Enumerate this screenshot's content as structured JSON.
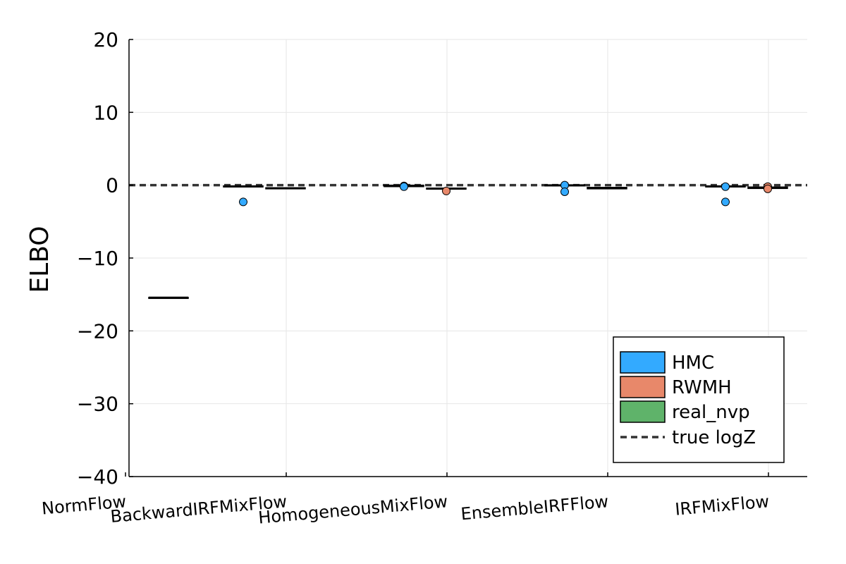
{
  "chart_data": {
    "type": "box",
    "ylabel": "ELBO",
    "xlabel": "",
    "ylim": [
      -40,
      20
    ],
    "yticks": [
      20,
      10,
      0,
      -10,
      -20,
      -30,
      -40
    ],
    "ytick_labels": [
      "20",
      "10",
      "0",
      "−10",
      "−20",
      "−30",
      "−40"
    ],
    "categories": [
      "NormFlow",
      "BackwardIRFMixFlow",
      "HomogeneousMixFlow",
      "EnsembleIRFFlow",
      "IRFMixFlow"
    ],
    "grid": true,
    "legend_position": "bottom-right",
    "series": [
      {
        "name": "HMC",
        "color": "#33aaff",
        "boxes": [
          null,
          {
            "category": "BackwardIRFMixFlow",
            "q1": -0.2,
            "median": -0.15,
            "q3": -0.1,
            "low": -0.2,
            "high": -0.1,
            "outliers": [
              -2.3
            ]
          },
          {
            "category": "HomogeneousMixFlow",
            "q1": -0.2,
            "median": -0.1,
            "q3": 0.0,
            "low": -0.2,
            "high": 0.0,
            "outliers": [
              -0.1,
              -0.2
            ]
          },
          {
            "category": "EnsembleIRFFlow",
            "q1": -0.1,
            "median": 0.0,
            "q3": 0.05,
            "low": -0.1,
            "high": 0.05,
            "outliers": [
              0.0,
              -0.9
            ]
          },
          {
            "category": "IRFMixFlow",
            "q1": -0.2,
            "median": -0.15,
            "q3": -0.1,
            "low": -0.2,
            "high": -0.1,
            "outliers": [
              -0.2,
              -2.3
            ]
          }
        ]
      },
      {
        "name": "RWMH",
        "color": "#e8886a",
        "boxes": [
          null,
          {
            "category": "BackwardIRFMixFlow",
            "q1": -0.5,
            "median": -0.45,
            "q3": -0.35,
            "low": -0.5,
            "high": -0.35,
            "outliers": []
          },
          {
            "category": "HomogeneousMixFlow",
            "q1": -0.5,
            "median": -0.45,
            "q3": -0.4,
            "low": -0.5,
            "high": -0.4,
            "outliers": [
              -0.8
            ]
          },
          {
            "category": "EnsembleIRFFlow",
            "q1": -0.5,
            "median": -0.4,
            "q3": -0.3,
            "low": -0.5,
            "high": -0.3,
            "outliers": []
          },
          {
            "category": "IRFMixFlow",
            "q1": -0.45,
            "median": -0.35,
            "q3": -0.25,
            "low": -0.45,
            "high": -0.25,
            "outliers": [
              -0.2,
              -0.5
            ]
          }
        ]
      },
      {
        "name": "real_nvp",
        "color": "#5fb36a",
        "boxes": [
          {
            "category": "NormFlow",
            "q1": -15.4,
            "median": -15.4,
            "q3": -15.4,
            "low": -15.4,
            "high": -15.4,
            "outliers": []
          },
          null,
          null,
          null,
          null
        ]
      }
    ],
    "reference_line": {
      "name": "true logZ",
      "y": 0,
      "color": "#333333",
      "style": "dashed"
    }
  }
}
